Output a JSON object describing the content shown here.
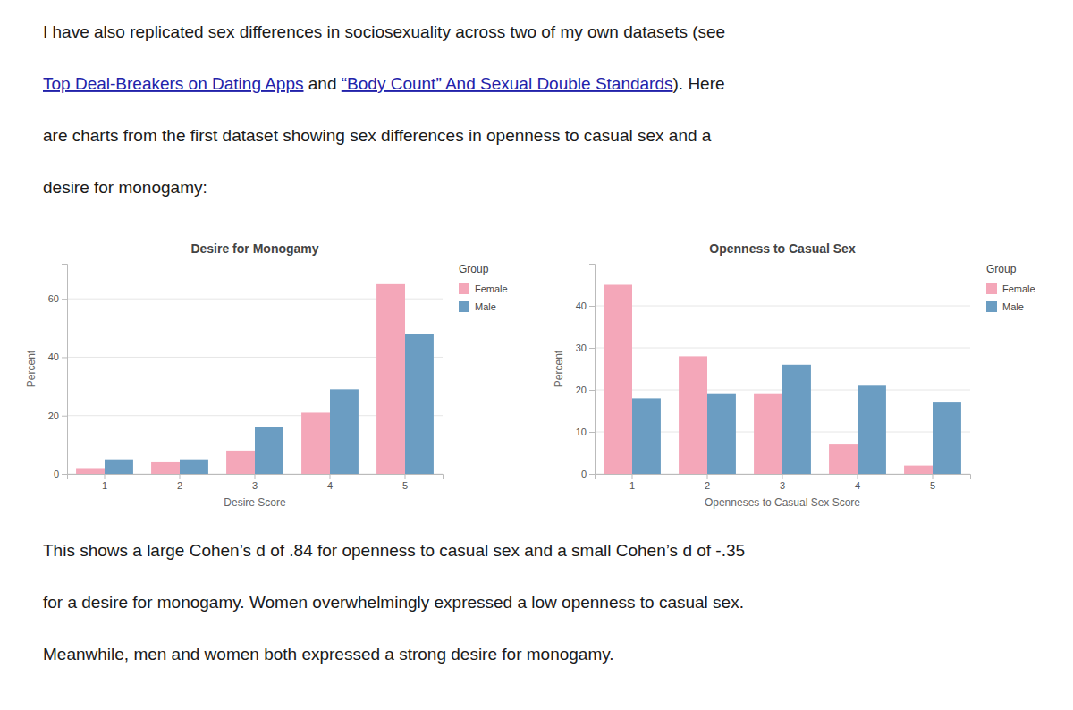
{
  "text_before": [
    [
      {
        "text": "I have also replicated sex differences in sociosexuality across two of my own datasets (see"
      }
    ],
    [
      {
        "text": "Top Deal-Breakers on Dating Apps",
        "color": "#2222aa"
      },
      {
        "text": " and "
      },
      {
        "text": "“Body Count” And Sexual Double Standards",
        "color": "#2222aa"
      },
      {
        "text": "). Here"
      }
    ],
    [
      {
        "text": "are charts from the first dataset showing sex differences in openness to casual sex and a"
      }
    ],
    [
      {
        "text": "desire for monogamy:"
      }
    ]
  ],
  "chart_data": [
    {
      "type": "bar",
      "title": "Desire for Monogamy",
      "x_label": "Desire Score",
      "y_label": "Percent",
      "categories": [
        1,
        2,
        3,
        4,
        5
      ],
      "series": [
        {
          "name": "Female",
          "color": "#F4A7B9",
          "values": [
            2,
            4,
            8,
            21,
            65
          ]
        },
        {
          "name": "Male",
          "color": "#6B9DC2",
          "values": [
            5,
            5,
            16,
            29,
            48
          ]
        }
      ],
      "ylim": [
        0,
        72
      ],
      "yticks": [
        0,
        20,
        40,
        60
      ],
      "grid": true,
      "legend": "right",
      "legend_title": "Group"
    },
    {
      "type": "bar",
      "title": "Openness to Casual Sex",
      "x_label": "Openneses to Casual Sex Score",
      "y_label": "Percent",
      "categories": [
        1,
        2,
        3,
        4,
        5
      ],
      "series": [
        {
          "name": "Female",
          "color": "#F4A7B9",
          "values": [
            45,
            28,
            19,
            7,
            2
          ]
        },
        {
          "name": "Male",
          "color": "#6B9DC2",
          "values": [
            18,
            19,
            26,
            21,
            17
          ]
        }
      ],
      "ylim": [
        0,
        50
      ],
      "yticks": [
        0,
        10,
        20,
        30,
        40
      ],
      "grid": true,
      "legend": "right",
      "legend_title": "Group"
    }
  ],
  "text_after": [
    [
      {
        "text": "This shows a large Cohen’s d of .84 for openness to casual sex and a small Cohen’s d of -.35"
      }
    ],
    [
      {
        "text": "for a desire for monogamy. Women overwhelmingly expressed a low openness to casual sex."
      }
    ],
    [
      {
        "text": "Meanwhile, men and women both expressed a strong desire for monogamy."
      }
    ]
  ]
}
